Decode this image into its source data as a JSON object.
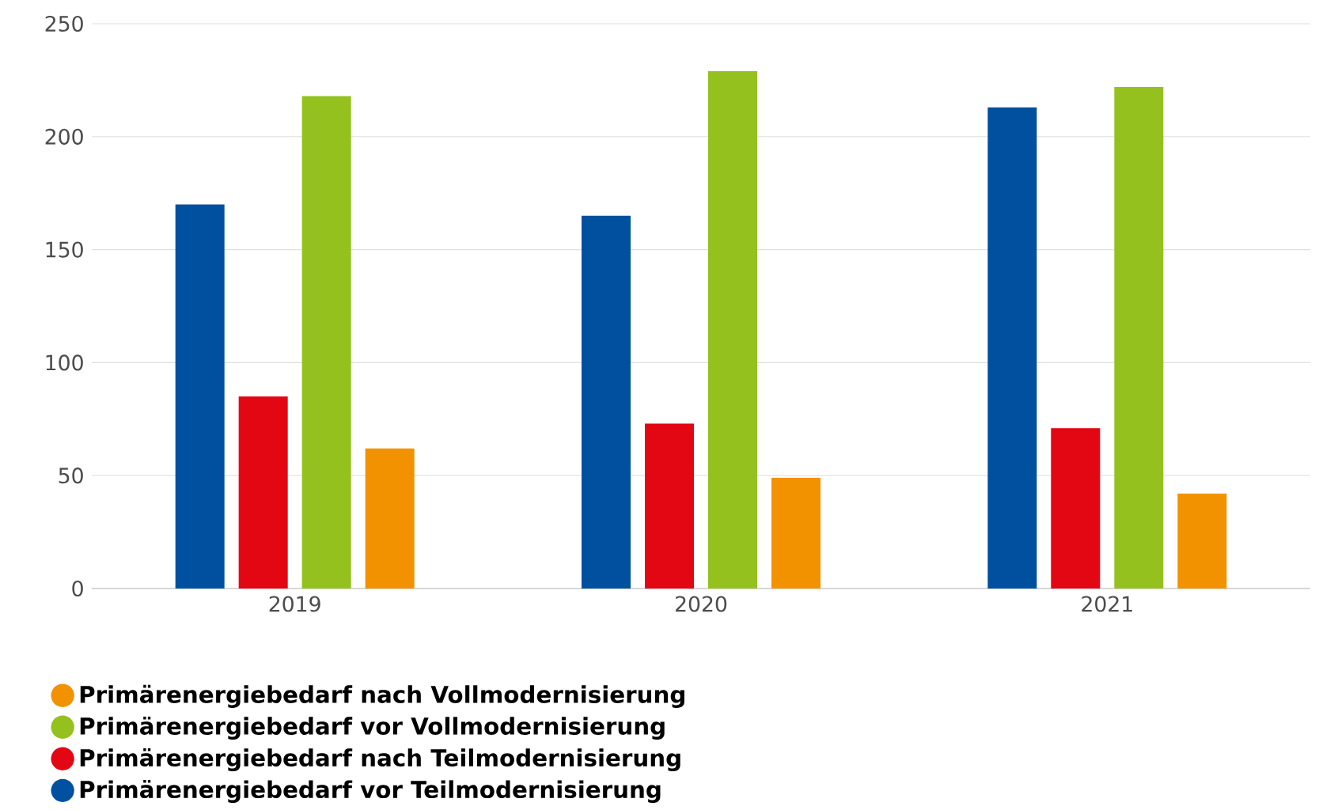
{
  "chart_data": {
    "type": "bar",
    "categories": [
      "2019",
      "2020",
      "2021"
    ],
    "series": [
      {
        "name": "Primärenergiebedarf vor Teilmodernisierung",
        "color": "#0050a0",
        "values": [
          170,
          165,
          213
        ]
      },
      {
        "name": "Primärenergiebedarf nach Teilmodernisierung",
        "color": "#e30613",
        "values": [
          85,
          73,
          71
        ]
      },
      {
        "name": "Primärenergiebedarf vor Vollmodernisierung",
        "color": "#95c11f",
        "values": [
          218,
          229,
          222
        ]
      },
      {
        "name": "Primärenergiebedarf nach Vollmodernisierung",
        "color": "#f39200",
        "values": [
          62,
          49,
          42
        ]
      }
    ],
    "ylim": [
      0,
      250
    ],
    "yticks": [
      0,
      50,
      100,
      150,
      200,
      250
    ],
    "grid": "y",
    "legend": "bottom left"
  }
}
